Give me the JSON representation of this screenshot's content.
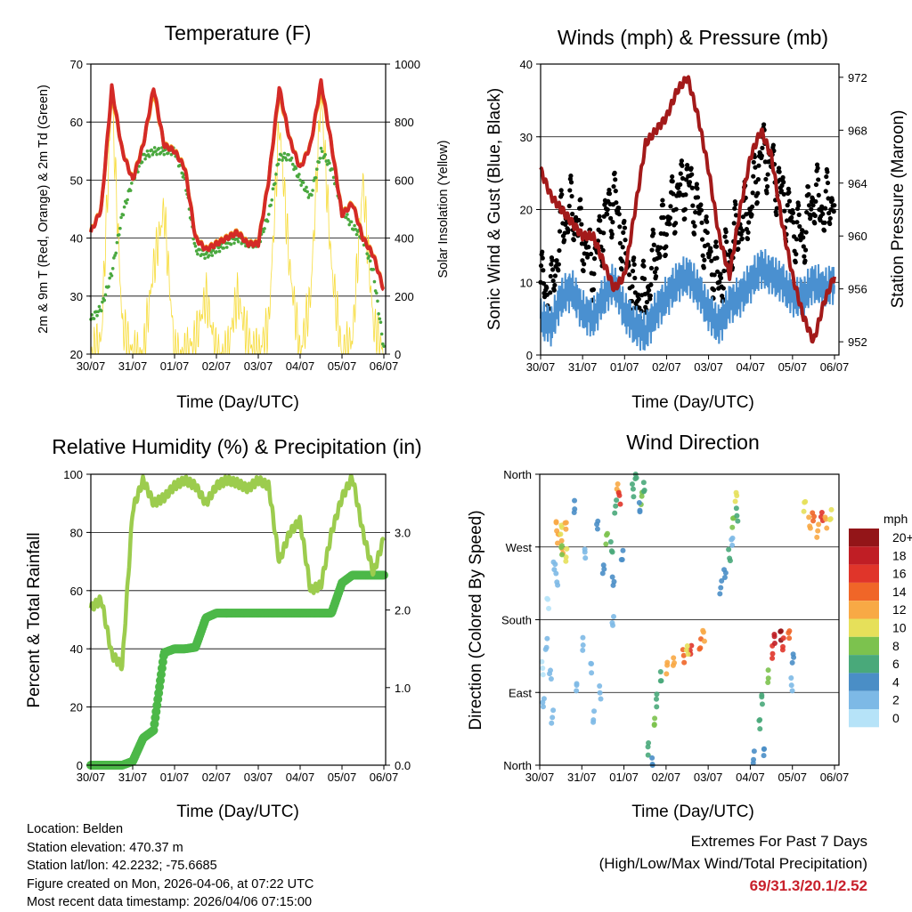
{
  "x_tick_labels": [
    "30/07",
    "31/07",
    "01/07",
    "02/07",
    "03/07",
    "04/07",
    "05/07",
    "06/07"
  ],
  "x_label": "Time (Day/UTC)",
  "chart_data": [
    {
      "id": "temp",
      "type": "line",
      "title": "Temperature (F)",
      "ylabel": "2m & 9m T (Red, Orange) & 2m Td (Green)",
      "ylabel_right": "Solar Insolation (Yellow)",
      "xlim": [
        0,
        7
      ],
      "ylim": [
        20,
        70
      ],
      "ylim_right": [
        0,
        1000
      ],
      "yticks": [
        20,
        30,
        40,
        50,
        60,
        70
      ],
      "yticks_right": [
        0,
        200,
        400,
        600,
        800,
        1000
      ],
      "grid": true,
      "x_step_days": 0.25,
      "series": [
        {
          "name": "2m T",
          "color": "#d42a27",
          "values": [
            41,
            45,
            66,
            55,
            50,
            56,
            66,
            56,
            55,
            52,
            40,
            38,
            39,
            40,
            41,
            39,
            39,
            50,
            66,
            57,
            52,
            56,
            67,
            56,
            44,
            46,
            40,
            37,
            31
          ]
        },
        {
          "name": "9m T",
          "color": "#f5a623",
          "values": [
            41,
            45,
            65,
            55,
            50,
            56,
            65,
            56,
            55,
            52,
            40,
            38,
            39,
            40,
            41,
            39,
            39,
            50,
            65,
            57,
            52,
            56,
            66,
            56,
            44,
            46,
            40,
            37,
            31
          ]
        },
        {
          "name": "2m Td",
          "color": "#4aa83f",
          "values": [
            26,
            28,
            34,
            44,
            50,
            54,
            55,
            55,
            55,
            50,
            38,
            37,
            38,
            39,
            40,
            39,
            39,
            44,
            54,
            54,
            50,
            47,
            55,
            52,
            45,
            42,
            40,
            34,
            21
          ]
        },
        {
          "name": "Solar Insolation",
          "color": "#f7dc3a",
          "axis": "right",
          "values": [
            0,
            50,
            900,
            100,
            0,
            0,
            300,
            500,
            0,
            0,
            50,
            200,
            0,
            0,
            200,
            50,
            0,
            100,
            800,
            300,
            0,
            200,
            900,
            300,
            0,
            50,
            600,
            100,
            0
          ]
        }
      ]
    },
    {
      "id": "wind",
      "type": "line",
      "title": "Winds (mph) & Pressure (mb)",
      "ylabel": "Sonic Wind & Gust (Blue, Black)",
      "ylabel_right": "Station Pressure (Maroon)",
      "xlim": [
        0,
        7
      ],
      "ylim": [
        0,
        40
      ],
      "ylim_right": [
        951,
        973
      ],
      "yticks": [
        0,
        10,
        20,
        30,
        40
      ],
      "yticks_right": [
        952,
        956,
        960,
        964,
        968,
        972
      ],
      "grid": true,
      "x_step_days": 0.25,
      "series": [
        {
          "name": "Gust",
          "color": "#000000",
          "values": [
            10,
            8,
            18,
            20,
            16,
            12,
            18,
            22,
            14,
            8,
            8,
            14,
            18,
            22,
            24,
            20,
            14,
            10,
            14,
            18,
            20,
            28,
            26,
            22,
            18,
            16,
            22,
            20,
            22
          ]
        },
        {
          "name": "Sonic Wind",
          "color": "#4a90d0",
          "values": [
            5,
            4,
            8,
            9,
            6,
            5,
            8,
            10,
            6,
            4,
            3,
            6,
            8,
            10,
            11,
            9,
            6,
            4,
            7,
            8,
            10,
            12,
            11,
            10,
            8,
            8,
            10,
            9,
            10
          ]
        },
        {
          "name": "Station Pressure",
          "color": "#a31a1a",
          "axis": "right",
          "values": [
            965,
            963,
            962,
            961,
            960,
            960,
            958,
            956,
            957,
            962,
            967,
            968,
            969,
            971,
            972,
            969,
            965,
            960,
            957,
            962,
            966,
            968,
            966,
            961,
            957,
            954,
            952,
            955,
            957
          ]
        }
      ]
    },
    {
      "id": "rh",
      "type": "line",
      "title": "Relative Humidity (%) & Precipitation (in)",
      "ylabel": "Percent & Total Rainfall",
      "xlim": [
        0,
        7
      ],
      "ylim": [
        0,
        100
      ],
      "ylim_right": [
        0,
        3.75
      ],
      "yticks": [
        0,
        20,
        40,
        60,
        80,
        100
      ],
      "yticks_right": [
        "0.0",
        "1.0",
        "2.0",
        "3.0"
      ],
      "grid": true,
      "x_step_days": 0.25,
      "series": [
        {
          "name": "Relative Humidity",
          "color": "#9ccc4e",
          "values": [
            54,
            57,
            38,
            34,
            88,
            98,
            90,
            92,
            96,
            98,
            96,
            90,
            96,
            98,
            97,
            95,
            98,
            96,
            70,
            80,
            84,
            60,
            62,
            80,
            92,
            99,
            80,
            66,
            78
          ]
        },
        {
          "name": "Total Precipitation",
          "color": "#4cb848",
          "axis": "right",
          "values": [
            0,
            0,
            0,
            0,
            0.05,
            0.35,
            0.45,
            1.45,
            1.5,
            1.5,
            1.52,
            1.9,
            1.96,
            1.96,
            1.96,
            1.96,
            1.96,
            1.96,
            1.96,
            1.96,
            1.96,
            1.96,
            1.96,
            1.96,
            2.35,
            2.45,
            2.45,
            2.45,
            2.45
          ]
        }
      ]
    },
    {
      "id": "dir",
      "type": "scatter",
      "title": "Wind Direction",
      "ylabel": "Direction (Colored By Speed)",
      "xlim": [
        0,
        7
      ],
      "ylim": [
        0,
        360
      ],
      "yticks": [
        0,
        90,
        180,
        270,
        360
      ],
      "ytick_labels": [
        "North",
        "East",
        "South",
        "West",
        "North"
      ],
      "grid": true,
      "legend": {
        "title": "mph",
        "placement": "right",
        "labels": [
          "20+",
          "18",
          "16",
          "14",
          "12",
          "10",
          "8",
          "6",
          "4",
          "2",
          "0"
        ],
        "colors": [
          "#931518",
          "#c01e25",
          "#e0352a",
          "#f06628",
          "#f8a945",
          "#e6e05a",
          "#7cc24e",
          "#49a97a",
          "#4a8ec6",
          "#7db9e6",
          "#b6e3f8"
        ]
      },
      "points_day_deg_mph": [
        [
          0.05,
          120,
          1
        ],
        [
          0.1,
          80,
          2
        ],
        [
          0.15,
          150,
          2
        ],
        [
          0.2,
          200,
          1
        ],
        [
          0.25,
          110,
          2
        ],
        [
          0.3,
          60,
          3
        ],
        [
          0.35,
          250,
          3
        ],
        [
          0.4,
          230,
          2
        ],
        [
          0.45,
          280,
          12
        ],
        [
          0.5,
          290,
          11
        ],
        [
          0.55,
          270,
          13
        ],
        [
          0.6,
          300,
          12
        ],
        [
          0.65,
          260,
          10
        ],
        [
          0.5,
          265,
          9
        ],
        [
          0.42,
          295,
          12
        ],
        [
          0.8,
          320,
          4
        ],
        [
          0.9,
          100,
          3
        ],
        [
          1.0,
          150,
          2
        ],
        [
          1.1,
          260,
          3
        ],
        [
          1.2,
          120,
          2
        ],
        [
          1.3,
          60,
          3
        ],
        [
          1.35,
          300,
          5
        ],
        [
          1.45,
          90,
          2
        ],
        [
          1.5,
          240,
          4
        ],
        [
          1.6,
          280,
          8
        ],
        [
          1.7,
          270,
          6
        ],
        [
          1.75,
          230,
          5
        ],
        [
          1.8,
          320,
          7
        ],
        [
          1.85,
          340,
          12
        ],
        [
          1.9,
          330,
          16
        ],
        [
          1.95,
          260,
          4
        ],
        [
          1.75,
          180,
          3
        ],
        [
          2.2,
          340,
          7
        ],
        [
          2.3,
          355,
          6
        ],
        [
          2.4,
          330,
          8
        ],
        [
          2.5,
          345,
          7
        ],
        [
          2.35,
          320,
          5
        ],
        [
          2.6,
          20,
          6
        ],
        [
          2.7,
          50,
          8
        ],
        [
          2.8,
          80,
          7
        ],
        [
          2.65,
          5,
          5
        ],
        [
          2.9,
          110,
          6
        ],
        [
          3.0,
          120,
          12
        ],
        [
          3.2,
          125,
          13
        ],
        [
          3.4,
          135,
          14
        ],
        [
          3.6,
          145,
          16
        ],
        [
          3.8,
          150,
          14
        ],
        [
          3.9,
          160,
          12
        ],
        [
          3.5,
          140,
          11
        ],
        [
          4.3,
          220,
          5
        ],
        [
          4.4,
          240,
          4
        ],
        [
          4.5,
          260,
          7
        ],
        [
          4.6,
          300,
          8
        ],
        [
          4.65,
          330,
          10
        ],
        [
          4.7,
          310,
          6
        ],
        [
          4.55,
          280,
          3
        ],
        [
          5.1,
          10,
          5
        ],
        [
          5.2,
          50,
          6
        ],
        [
          5.3,
          80,
          6
        ],
        [
          5.4,
          110,
          8
        ],
        [
          5.35,
          20,
          4
        ],
        [
          5.5,
          140,
          16
        ],
        [
          5.6,
          155,
          18
        ],
        [
          5.7,
          160,
          20
        ],
        [
          5.8,
          150,
          17
        ],
        [
          5.9,
          165,
          14
        ],
        [
          6.0,
          100,
          3
        ],
        [
          6.0,
          130,
          4
        ],
        [
          6.3,
          320,
          10
        ],
        [
          6.4,
          300,
          12
        ],
        [
          6.5,
          310,
          14
        ],
        [
          6.6,
          290,
          12
        ],
        [
          6.7,
          305,
          16
        ],
        [
          6.8,
          300,
          13
        ],
        [
          6.9,
          310,
          10
        ]
      ]
    }
  ],
  "station_info": [
    "Location: Belden",
    "Station elevation: 470.37 m",
    "Station lat/lon: 42.2232; -75.6685",
    "Figure created on Mon, 2026-04-06, at 07:22 UTC",
    "Most recent data timestamp: 2026/04/06 07:15:00"
  ],
  "extremes": {
    "heading": "Extremes For Past 7 Days",
    "subheading": "(High/Low/Max Wind/Total Precipitation)",
    "values": "69/31.3/20.1/2.52",
    "values_color": "#c8202b"
  }
}
